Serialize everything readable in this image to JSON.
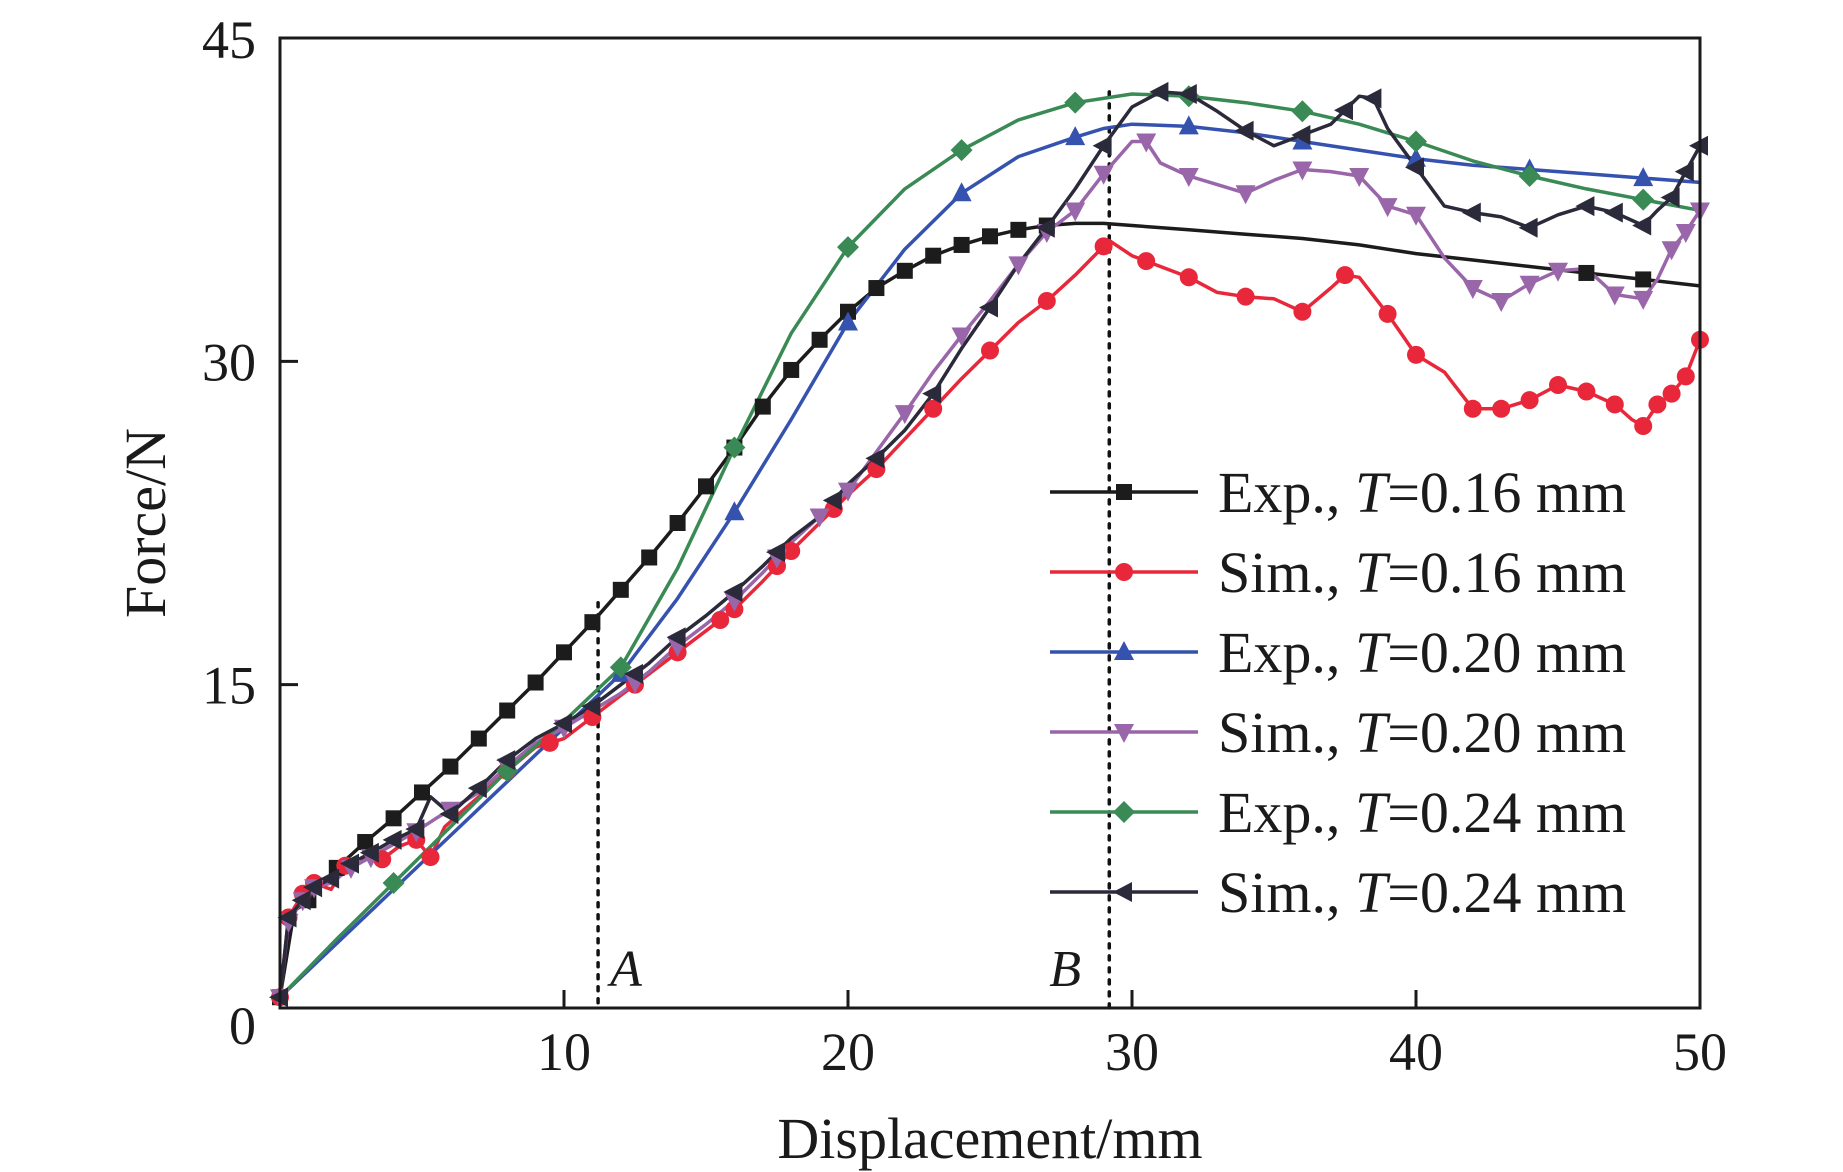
{
  "chart_data": {
    "type": "line",
    "title": "",
    "xlabel": "Displacement/mm",
    "ylabel": "Force/N",
    "xlim": [
      0,
      50
    ],
    "ylim": [
      0,
      45
    ],
    "x_ticks": [
      0,
      10,
      20,
      30,
      40,
      50
    ],
    "x_tick_labels": [
      "",
      "10",
      "20",
      "30",
      "40",
      "50"
    ],
    "y_ticks": [
      0,
      15,
      30,
      45
    ],
    "y_tick_labels": [
      "0",
      "15",
      "30",
      "45"
    ],
    "grid": false,
    "legend_position": "lower-right",
    "annotations": [
      {
        "label": "A",
        "x": 11.2
      },
      {
        "label": "B",
        "x": 29.2
      }
    ],
    "series": [
      {
        "name": "Exp., T=0.16 mm",
        "legend_prefix": "Exp., ",
        "legend_var": "T",
        "legend_value": "=0.16 mm",
        "color": "#1c1c1c",
        "marker": "square",
        "x": [
          0,
          0.5,
          1,
          2,
          3,
          4,
          5,
          6,
          7,
          8,
          9,
          10,
          11,
          12,
          13,
          14,
          15,
          16,
          17,
          18,
          19,
          20,
          21,
          22,
          23,
          24,
          25,
          26,
          27,
          28,
          29,
          30,
          32,
          34,
          36,
          38,
          40,
          42,
          44,
          46,
          48,
          50
        ],
        "y": [
          0.5,
          4.5,
          5.0,
          6.5,
          7.7,
          8.8,
          10.0,
          11.2,
          12.5,
          13.8,
          15.1,
          16.5,
          17.9,
          19.4,
          20.9,
          22.5,
          24.2,
          26.0,
          27.9,
          29.6,
          31.0,
          32.3,
          33.4,
          34.2,
          34.9,
          35.4,
          35.8,
          36.1,
          36.3,
          36.4,
          36.4,
          36.3,
          36.1,
          35.9,
          35.7,
          35.4,
          35.0,
          34.7,
          34.4,
          34.1,
          33.8,
          33.5
        ],
        "marker_x": [
          0,
          1,
          2,
          3,
          4,
          5,
          6,
          7,
          8,
          9,
          10,
          11,
          12,
          13,
          14,
          15,
          16,
          17,
          18,
          19,
          20,
          21,
          22,
          23,
          24,
          25,
          26,
          27,
          46,
          48
        ]
      },
      {
        "name": "Sim., T=0.16 mm",
        "legend_prefix": "Sim., ",
        "legend_var": "T",
        "legend_value": "=0.16 mm",
        "color": "#e8283a",
        "marker": "circle",
        "x": [
          0,
          0.3,
          0.8,
          1.2,
          1.8,
          2.3,
          3.0,
          3.6,
          4.2,
          4.8,
          5.3,
          5.8,
          6.3,
          7.0,
          8.0,
          9.0,
          10.0,
          11.0,
          12.0,
          13.0,
          14.0,
          15.0,
          16.0,
          17.0,
          18.0,
          19.0,
          20.0,
          21.0,
          22.0,
          23.0,
          24.0,
          25.0,
          26.0,
          27.0,
          28.0,
          28.6,
          29.2,
          30.0,
          31.0,
          32.0,
          33.0,
          34.0,
          35.0,
          36.0,
          37.0,
          37.5,
          38.0,
          39.0,
          40.0,
          41.0,
          42.0,
          43.0,
          44.0,
          45.0,
          46.0,
          47.0,
          47.6,
          48.0,
          48.5,
          49.0,
          49.5,
          50.0
        ],
        "y": [
          0.5,
          4.2,
          5.3,
          5.8,
          5.5,
          6.6,
          7.0,
          6.9,
          7.5,
          7.8,
          7.0,
          8.4,
          9.0,
          9.8,
          11.0,
          12.1,
          12.5,
          13.5,
          14.5,
          15.5,
          16.5,
          17.5,
          18.5,
          19.8,
          21.2,
          22.5,
          23.8,
          25.0,
          26.4,
          27.8,
          29.2,
          30.5,
          31.8,
          32.8,
          34.0,
          34.8,
          35.6,
          34.9,
          34.4,
          33.9,
          33.2,
          33.0,
          32.9,
          32.3,
          33.4,
          34.0,
          33.9,
          32.2,
          30.3,
          29.5,
          27.8,
          27.8,
          28.2,
          28.9,
          28.6,
          28.0,
          27.3,
          27.0,
          28.0,
          28.5,
          29.3,
          31.0
        ],
        "marker_x": [
          0,
          0.3,
          0.8,
          1.2,
          2.3,
          3.6,
          4.8,
          5.3,
          8.0,
          9.5,
          11.0,
          12.5,
          14.0,
          15.5,
          16.0,
          17.5,
          18.0,
          19.5,
          21.0,
          23.0,
          25.0,
          27.0,
          29.0,
          30.5,
          32.0,
          34.0,
          36.0,
          37.5,
          39.0,
          40.0,
          42.0,
          43.0,
          44.0,
          45.0,
          46.0,
          47.0,
          48.0,
          48.5,
          49.0,
          49.5,
          50.0
        ]
      },
      {
        "name": "Exp., T=0.20 mm",
        "legend_prefix": "Exp., ",
        "legend_var": "T",
        "legend_value": "=0.20 mm",
        "color": "#3552ae",
        "marker": "triangle-up",
        "x": [
          0,
          2,
          4,
          6,
          8,
          10,
          12,
          14,
          16,
          18,
          20,
          22,
          24,
          26,
          28,
          29,
          30,
          32,
          34,
          36,
          38,
          40,
          42,
          44,
          46,
          48,
          50
        ],
        "y": [
          0.5,
          3.0,
          5.5,
          8.0,
          10.5,
          13.0,
          15.5,
          19.0,
          23.0,
          27.3,
          31.8,
          35.2,
          37.8,
          39.5,
          40.4,
          40.8,
          41.0,
          40.9,
          40.6,
          40.2,
          39.8,
          39.4,
          39.1,
          38.9,
          38.7,
          38.5,
          38.3
        ],
        "marker_x": [
          12,
          16,
          20,
          24,
          28,
          32,
          36,
          40,
          44,
          48
        ]
      },
      {
        "name": "Sim., T=0.20 mm",
        "legend_prefix": "Sim., ",
        "legend_var": "T",
        "legend_value": "=0.20 mm",
        "color": "#9a66aa",
        "marker": "triangle-down",
        "x": [
          0,
          0.3,
          0.8,
          1.2,
          1.8,
          2.5,
          3.2,
          4.0,
          4.8,
          5.5,
          6.0,
          7.0,
          8.0,
          9.0,
          10.0,
          11.0,
          12.0,
          13.0,
          14.0,
          15.0,
          16.0,
          17.0,
          18.0,
          19.0,
          20.0,
          21.0,
          22.0,
          23.0,
          24.0,
          25.0,
          26.0,
          27.0,
          28.0,
          29.0,
          30.0,
          30.5,
          31.0,
          32.0,
          33.0,
          34.0,
          35.0,
          36.0,
          37.0,
          38.0,
          39.0,
          40.0,
          41.0,
          42.0,
          43.0,
          44.0,
          45.0,
          46.0,
          47.0,
          48.0,
          48.5,
          49.0,
          49.5,
          50.0
        ],
        "y": [
          0.5,
          4.0,
          5.0,
          5.6,
          5.8,
          6.5,
          7.0,
          7.6,
          8.2,
          8.8,
          9.2,
          10.0,
          11.2,
          12.3,
          13.0,
          13.8,
          14.6,
          15.6,
          16.8,
          17.8,
          18.9,
          20.2,
          21.6,
          22.8,
          24.0,
          25.8,
          27.6,
          29.5,
          31.2,
          32.8,
          34.5,
          36.0,
          37.0,
          38.7,
          40.2,
          40.2,
          39.2,
          38.6,
          38.2,
          37.8,
          38.4,
          38.9,
          38.8,
          38.6,
          37.2,
          36.8,
          34.8,
          33.4,
          32.8,
          33.6,
          34.2,
          34.3,
          33.1,
          32.9,
          33.8,
          35.2,
          36.0,
          37.0
        ],
        "marker_x": [
          0,
          0.3,
          0.8,
          1.2,
          2.5,
          3.2,
          4.8,
          6.0,
          8.0,
          10.0,
          12.5,
          14.0,
          16.0,
          17.5,
          19.0,
          20.0,
          22.0,
          24.0,
          26.0,
          27.0,
          28.0,
          29.0,
          30.5,
          32.0,
          34.0,
          36.0,
          38.0,
          39.0,
          40.0,
          42.0,
          43.0,
          44.0,
          45.0,
          47.0,
          48.0,
          49.0,
          49.5,
          50.0
        ]
      },
      {
        "name": "Exp., T=0.24 mm",
        "legend_prefix": "Exp., ",
        "legend_var": "T",
        "legend_value": "=0.24 mm",
        "color": "#3a8a55",
        "marker": "diamond",
        "x": [
          0,
          2,
          4,
          6,
          8,
          10,
          12,
          14,
          16,
          18,
          20,
          22,
          24,
          26,
          28,
          30,
          32,
          34,
          36,
          38,
          40,
          42,
          44,
          46,
          48,
          50
        ],
        "y": [
          0.5,
          3.2,
          5.8,
          8.4,
          11.0,
          13.3,
          15.8,
          20.4,
          26.0,
          31.3,
          35.3,
          38.0,
          39.8,
          41.2,
          42.0,
          42.4,
          42.3,
          42.0,
          41.6,
          41.0,
          40.2,
          39.3,
          38.6,
          38.0,
          37.5,
          37.0
        ],
        "marker_x": [
          4,
          8,
          12,
          16,
          20,
          24,
          28,
          32,
          36,
          40,
          44,
          48
        ]
      },
      {
        "name": "Sim., T=0.24 mm",
        "legend_prefix": "Sim., ",
        "legend_var": "T",
        "legend_value": "=0.24 mm",
        "color": "#2a2a3a",
        "marker": "triangle-left",
        "x": [
          0,
          0.3,
          0.8,
          1.2,
          1.8,
          2.5,
          3.2,
          4.0,
          4.8,
          5.3,
          6.0,
          7.0,
          8.0,
          9.0,
          10.0,
          11.0,
          12.0,
          13.0,
          14.0,
          15.0,
          16.0,
          17.0,
          18.0,
          19.0,
          20.0,
          21.0,
          22.0,
          23.0,
          24.0,
          25.0,
          26.0,
          27.0,
          28.0,
          29.0,
          30.0,
          31.0,
          32.0,
          33.0,
          34.0,
          35.0,
          36.0,
          37.0,
          38.0,
          38.5,
          39.0,
          40.0,
          41.0,
          42.0,
          43.0,
          44.0,
          45.0,
          46.0,
          47.0,
          48.0,
          48.5,
          49.0,
          49.5,
          50.0
        ],
        "y": [
          0.5,
          4.2,
          5.0,
          5.6,
          6.0,
          6.7,
          7.2,
          7.8,
          8.3,
          9.8,
          9.0,
          10.2,
          11.5,
          12.5,
          13.2,
          14.0,
          15.0,
          16.0,
          17.2,
          18.2,
          19.3,
          20.5,
          21.8,
          22.8,
          24.3,
          25.5,
          26.8,
          28.5,
          30.6,
          32.5,
          34.5,
          36.2,
          38.0,
          40.0,
          41.8,
          42.5,
          42.4,
          41.6,
          40.7,
          40.0,
          40.5,
          41.0,
          42.3,
          42.2,
          40.8,
          39.0,
          37.2,
          36.9,
          36.7,
          36.2,
          36.8,
          37.2,
          36.9,
          36.3,
          37.0,
          37.6,
          38.8,
          40.0
        ],
        "marker_x": [
          0,
          0.3,
          0.8,
          1.2,
          1.8,
          2.5,
          3.2,
          4.0,
          4.8,
          6.0,
          7.0,
          8.0,
          10.0,
          11.0,
          12.5,
          14.0,
          16.0,
          17.5,
          19.5,
          21.0,
          23.0,
          25.0,
          27.0,
          29.0,
          31.0,
          32.0,
          34.0,
          36.0,
          37.5,
          38.5,
          40.0,
          42.0,
          44.0,
          46.0,
          47.0,
          48.0,
          49.0,
          49.5,
          50.0
        ]
      }
    ]
  }
}
